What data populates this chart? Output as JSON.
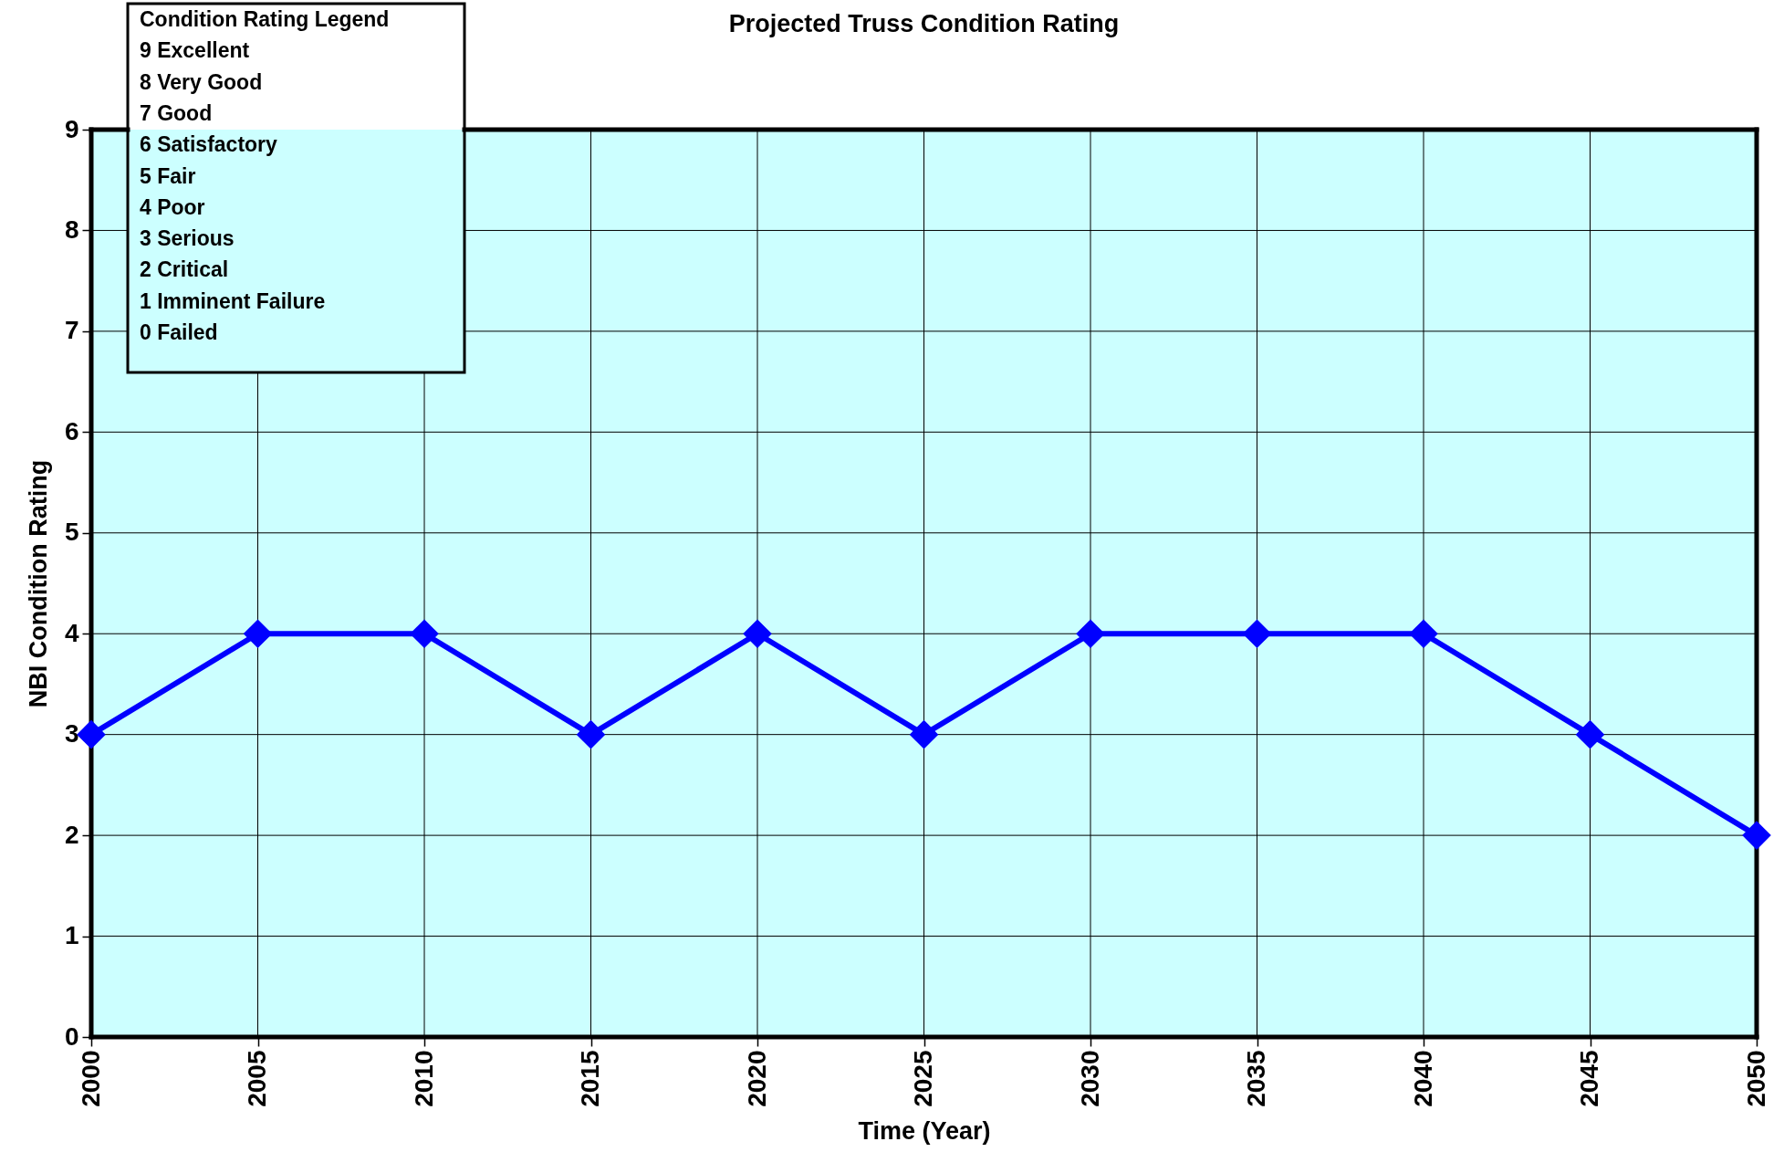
{
  "chart_data": {
    "type": "line",
    "title": "Projected Truss Condition Rating",
    "xlabel": "Time (Year)",
    "ylabel": "NBI Condition Rating",
    "x": [
      2000,
      2005,
      2010,
      2015,
      2020,
      2025,
      2030,
      2035,
      2040,
      2045,
      2050
    ],
    "series": [
      {
        "color": "#0000ff",
        "values": [
          3,
          4,
          4,
          3,
          4,
          3,
          4,
          4,
          4,
          3,
          2
        ]
      }
    ],
    "xlim": [
      2000,
      2050
    ],
    "xticks": [
      2000,
      2005,
      2010,
      2015,
      2020,
      2025,
      2030,
      2035,
      2040,
      2045,
      2050
    ],
    "ylim": [
      0,
      9
    ],
    "yticks": [
      0,
      1,
      2,
      3,
      4,
      5,
      6,
      7,
      8,
      9
    ],
    "grid": true,
    "marker": "diamond",
    "line_style": "solid",
    "annotations": [
      "Condition Rating Legend",
      "9 Excellent",
      "8 Very Good",
      "7 Good",
      "6 Satisfactory",
      "5 Fair",
      "4 Poor",
      "3 Serious",
      "2 Critical",
      "1 Imminent Failure",
      "0 Failed"
    ]
  }
}
